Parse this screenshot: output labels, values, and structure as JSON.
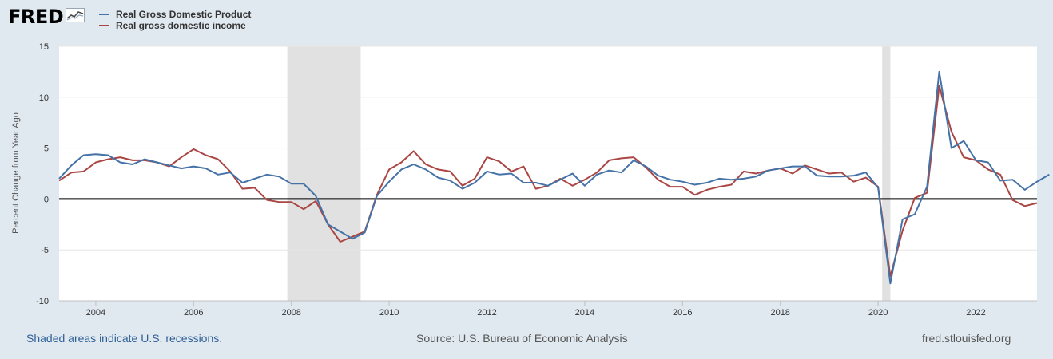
{
  "brand": {
    "logo_text": "FRED"
  },
  "colors": {
    "gdp": "#4572a7",
    "gdi": "#aa4643",
    "recession": "#e1e1e1",
    "grid": "#e6e6e6",
    "zero": "#000000"
  },
  "footer": {
    "note": "Shaded areas indicate U.S. recessions.",
    "source": "Source: U.S. Bureau of Economic Analysis",
    "site": "fred.stlouisfed.org"
  },
  "chart_data": {
    "type": "line",
    "title": "",
    "xlabel": "",
    "ylabel": "Percent Change from Year Ago",
    "xlim": [
      2003.25,
      2023.25
    ],
    "ylim": [
      -10,
      15
    ],
    "yticks": [
      15,
      10,
      5,
      0,
      -5,
      -10
    ],
    "xticks": [
      2004,
      2006,
      2008,
      2010,
      2012,
      2014,
      2016,
      2018,
      2020,
      2022
    ],
    "recessions": [
      [
        2007.917,
        2009.417
      ],
      [
        2020.083,
        2020.25
      ]
    ],
    "x_start": 2003.25,
    "x_step": 0.25,
    "series": [
      {
        "name": "Real Gross Domestic Product",
        "color": "#4572a7",
        "values": [
          2.0,
          3.3,
          4.3,
          4.4,
          4.3,
          3.6,
          3.4,
          3.9,
          3.6,
          3.3,
          3.0,
          3.2,
          3.0,
          2.4,
          2.6,
          1.6,
          2.0,
          2.4,
          2.2,
          1.5,
          1.5,
          0.3,
          -2.5,
          -3.2,
          -3.9,
          -3.3,
          0.3,
          1.7,
          2.9,
          3.4,
          2.9,
          2.1,
          1.8,
          1.0,
          1.6,
          2.7,
          2.4,
          2.5,
          1.6,
          1.6,
          1.3,
          1.9,
          2.5,
          1.3,
          2.4,
          2.8,
          2.6,
          3.8,
          3.2,
          2.3,
          1.9,
          1.7,
          1.4,
          1.6,
          2.0,
          1.9,
          2.0,
          2.2,
          2.8,
          3.0,
          3.2,
          3.2,
          2.3,
          2.2,
          2.2,
          2.3,
          2.6,
          1.1,
          -8.3,
          -2.0,
          -1.5,
          1.2,
          12.5,
          5.0,
          5.7,
          3.8,
          3.6,
          1.8,
          1.9,
          0.9,
          1.7,
          2.4
        ]
      },
      {
        "name": "Real gross domestic income",
        "color": "#aa4643",
        "values": [
          1.8,
          2.6,
          2.7,
          3.6,
          3.9,
          4.1,
          3.8,
          3.8,
          3.6,
          3.2,
          4.1,
          4.9,
          4.3,
          3.9,
          2.7,
          1.0,
          1.1,
          -0.1,
          -0.3,
          -0.3,
          -1.0,
          -0.2,
          -2.5,
          -4.2,
          -3.7,
          -3.2,
          0.4,
          2.9,
          3.6,
          4.7,
          3.4,
          2.9,
          2.7,
          1.3,
          2.0,
          4.1,
          3.7,
          2.7,
          3.2,
          1.0,
          1.3,
          2.0,
          1.3,
          1.9,
          2.6,
          3.8,
          4.0,
          4.1,
          3.1,
          1.9,
          1.2,
          1.2,
          0.4,
          0.9,
          1.2,
          1.4,
          2.7,
          2.5,
          2.8,
          3.0,
          2.5,
          3.3,
          2.9,
          2.5,
          2.6,
          1.7,
          2.1,
          1.2,
          -7.6,
          -3.1,
          0.1,
          0.6,
          11.1,
          6.6,
          4.1,
          3.8,
          2.9,
          2.4,
          -0.1,
          -0.7,
          -0.4
        ]
      }
    ]
  }
}
